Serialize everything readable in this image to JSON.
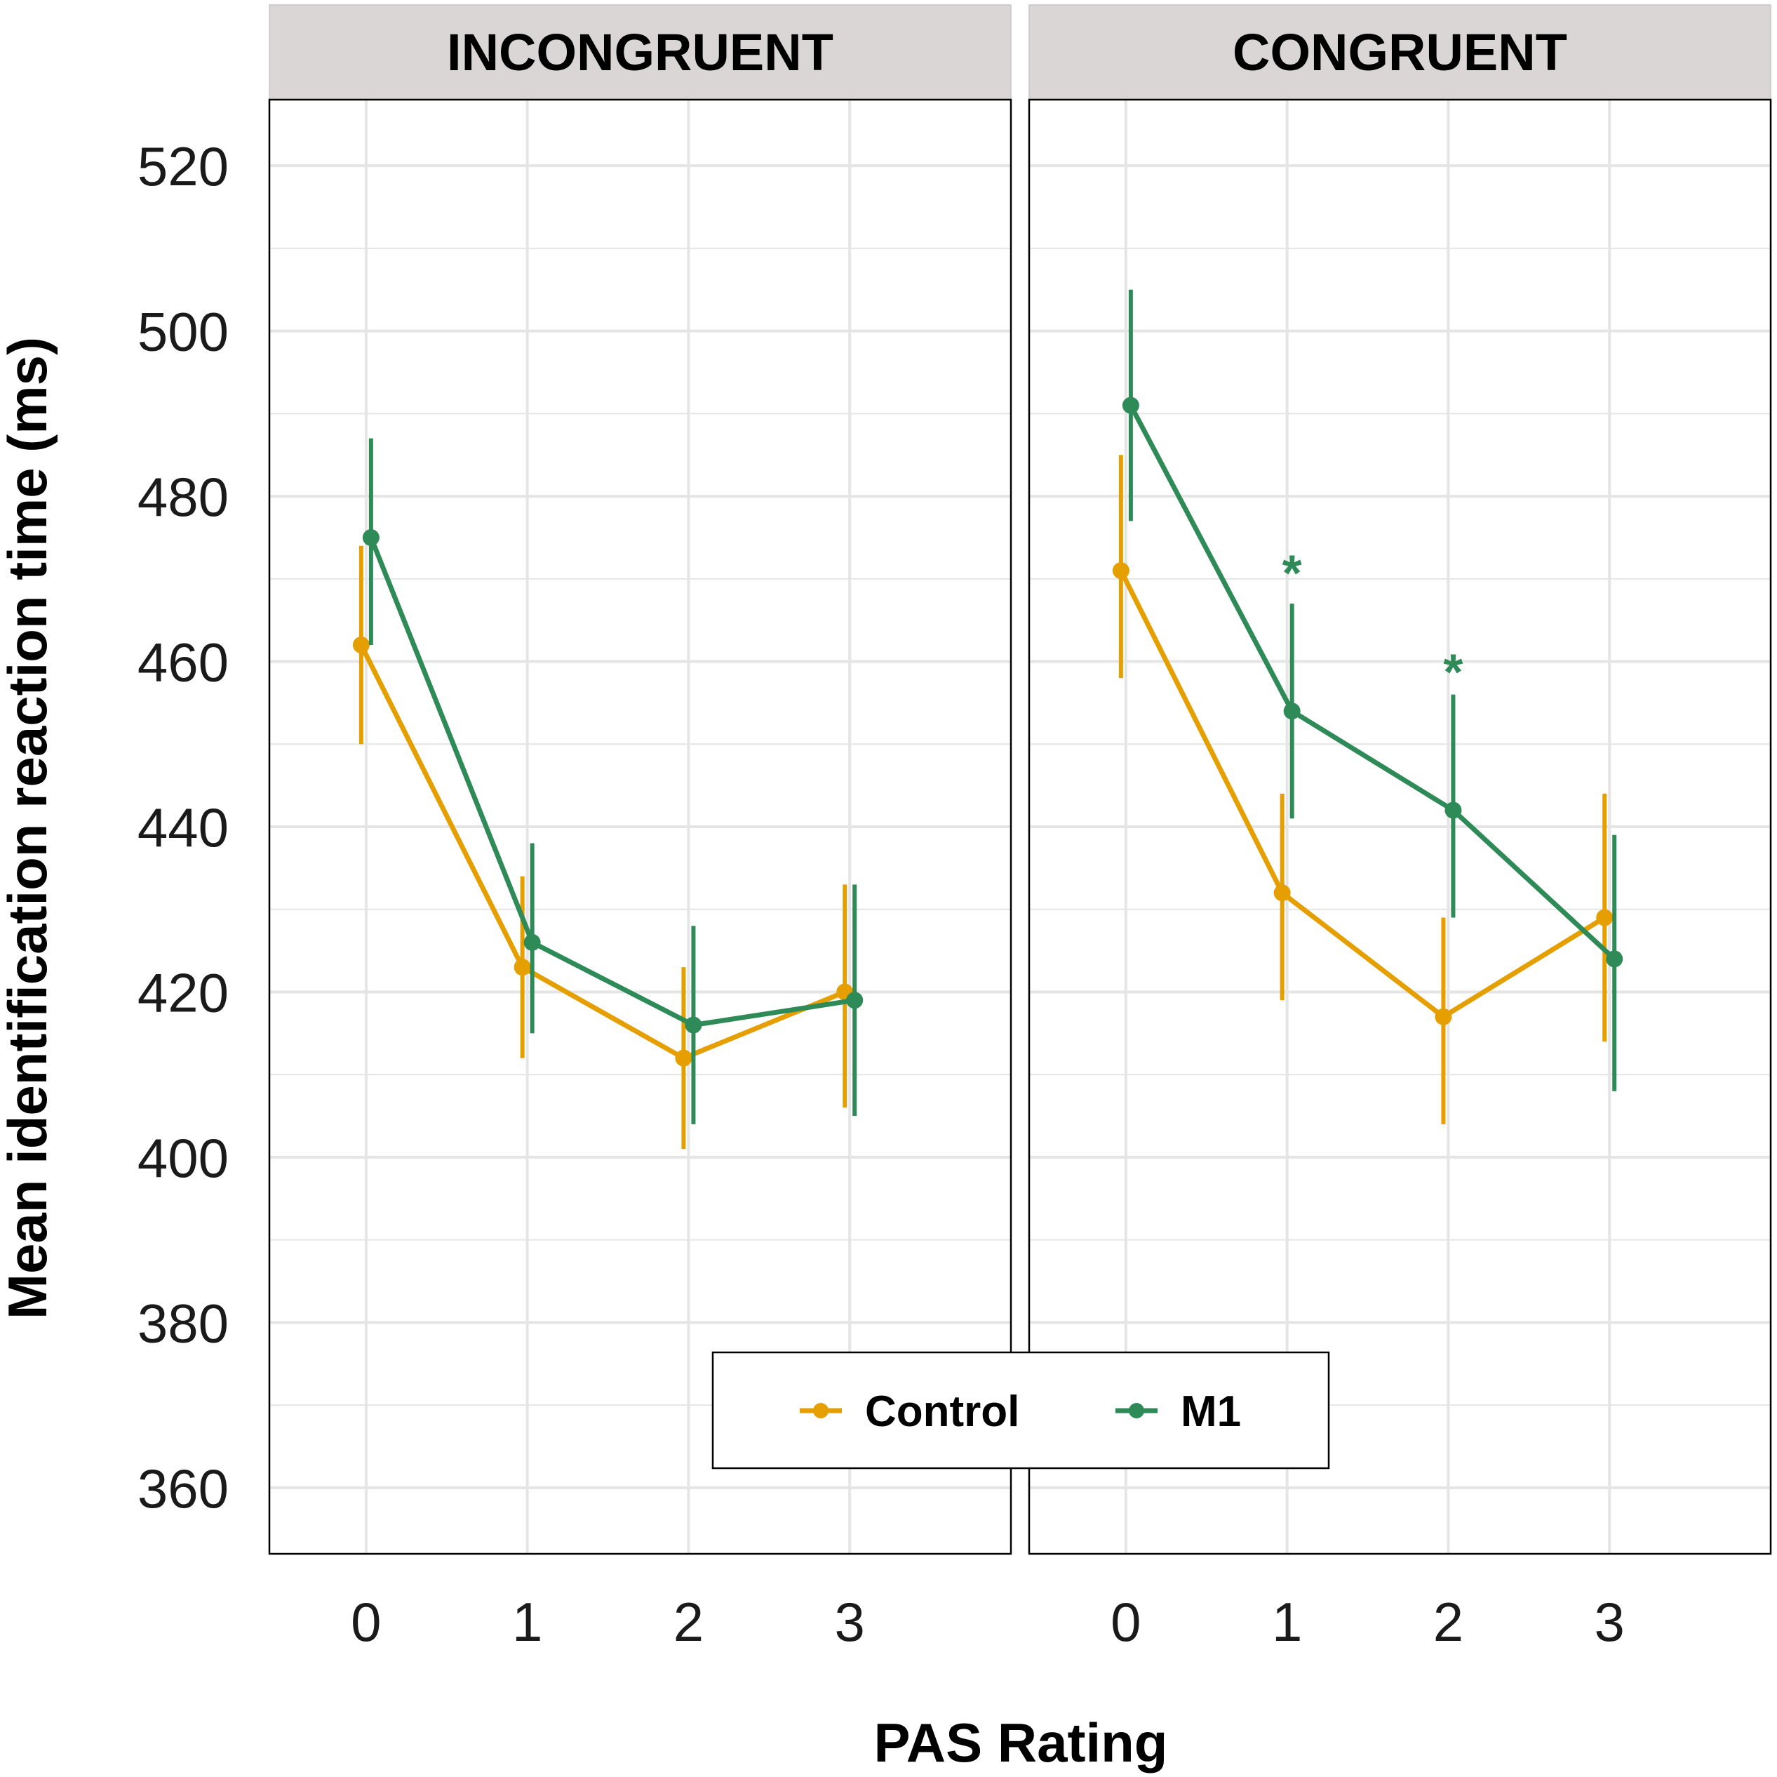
{
  "colors": {
    "control": "#E69F00",
    "m1": "#2E8B57",
    "strip_bg": "#D9D6D5",
    "grid": "#E5E5E5"
  },
  "chart_data": {
    "type": "line",
    "xlabel": "PAS Rating",
    "ylabel": "Mean identification reaction time (ms)",
    "x_ticks": [
      "0",
      "1",
      "2",
      "3"
    ],
    "y_ticks": [
      360,
      380,
      400,
      420,
      440,
      460,
      480,
      500,
      520
    ],
    "ylim": [
      352,
      528
    ],
    "legend": {
      "position": "bottom-center",
      "entries": [
        "Control",
        "M1"
      ]
    },
    "panels": [
      {
        "title": "INCONGRUENT",
        "series": [
          {
            "name": "Control",
            "key": "control",
            "values": [
              462,
              423,
              412,
              420
            ],
            "ci_low": [
              450,
              412,
              401,
              406
            ],
            "ci_high": [
              474,
              434,
              423,
              433
            ]
          },
          {
            "name": "M1",
            "key": "m1",
            "values": [
              475,
              426,
              416,
              419
            ],
            "ci_low": [
              462,
              415,
              404,
              405
            ],
            "ci_high": [
              487,
              438,
              428,
              433
            ]
          }
        ],
        "annotations": []
      },
      {
        "title": "CONGRUENT",
        "series": [
          {
            "name": "Control",
            "key": "control",
            "values": [
              471,
              432,
              417,
              429
            ],
            "ci_low": [
              458,
              419,
              404,
              414
            ],
            "ci_high": [
              485,
              444,
              429,
              444
            ]
          },
          {
            "name": "M1",
            "key": "m1",
            "values": [
              491,
              454,
              442,
              424
            ],
            "ci_low": [
              477,
              441,
              429,
              408
            ],
            "ci_high": [
              505,
              467,
              456,
              439
            ]
          }
        ],
        "annotations": [
          {
            "x": 1,
            "y": 472,
            "text": "*",
            "series": "m1"
          },
          {
            "x": 2,
            "y": 460,
            "text": "*",
            "series": "m1"
          }
        ]
      }
    ]
  }
}
